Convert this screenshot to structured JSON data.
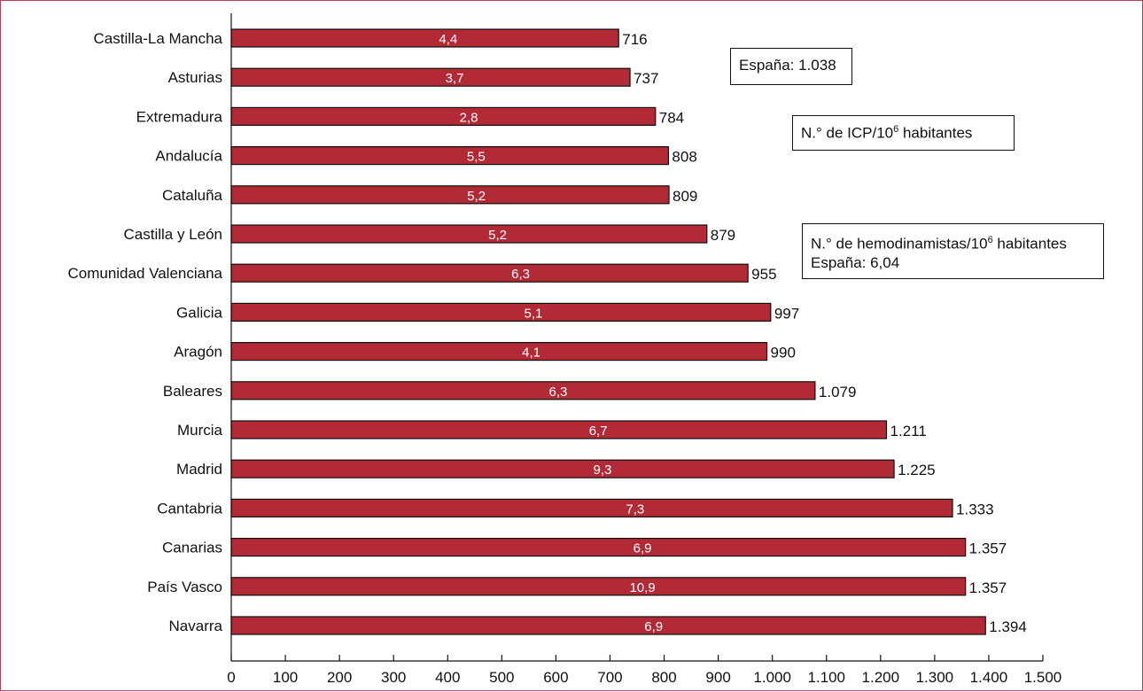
{
  "chart_data": {
    "type": "bar",
    "orientation": "horizontal",
    "categories": [
      "Castilla-La Mancha",
      "Asturias",
      "Extremadura",
      "Andalucía",
      "Cataluña",
      "Castilla y León",
      "Comunidad Valenciana",
      "Galicia",
      "Aragón",
      "Baleares",
      "Murcia",
      "Madrid",
      "Cantabria",
      "Canarias",
      "País Vasco",
      "Navarra"
    ],
    "series": [
      {
        "values": [
          716,
          737,
          784,
          808,
          809,
          879,
          955,
          997,
          990,
          1079,
          1211,
          1225,
          1333,
          1357,
          1357,
          1394
        ]
      }
    ],
    "value_labels": [
      "716",
      "737",
      "784",
      "808",
      "809",
      "879",
      "955",
      "997",
      "990",
      "1.079",
      "1.211",
      "1.225",
      "1.333",
      "1.357",
      "1.357",
      "1.394"
    ],
    "inner_labels": [
      "4,4",
      "3,7",
      "2,8",
      "5,5",
      "5,2",
      "5,2",
      "6,3",
      "5,1",
      "4,1",
      "6,3",
      "6,7",
      "9,3",
      "7,3",
      "6,9",
      "10,9",
      "6,9"
    ],
    "xlim": [
      0,
      1500
    ],
    "xticks": [
      0,
      100,
      200,
      300,
      400,
      500,
      600,
      700,
      800,
      900,
      1000,
      1100,
      1200,
      1300,
      1400,
      1500
    ],
    "xtick_labels": [
      "0",
      "100",
      "200",
      "300",
      "400",
      "500",
      "600",
      "700",
      "800",
      "900",
      "1.000",
      "1.100",
      "1.200",
      "1.300",
      "1.400",
      "1.500"
    ],
    "title": "",
    "xlabel": "",
    "ylabel": "",
    "grid": false,
    "colors": {
      "bar_fill": "#b22a36",
      "bar_stroke": "#111111",
      "frame": "#c23a5a"
    }
  },
  "annotations": {
    "espana_total": "España: 1.038",
    "icp_label_pre": "N.° de ICP/10",
    "icp_label_sup": "6",
    "icp_label_post": " habitantes",
    "hemo_label_pre": "N.° de hemodinamistas/10",
    "hemo_label_sup": "6",
    "hemo_label_post": " habitantes",
    "hemo_espana": "España: 6,04"
  }
}
